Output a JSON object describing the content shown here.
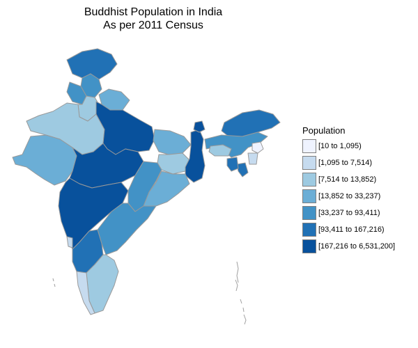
{
  "title": {
    "line1": "Buddhist Population in India",
    "line2": "As per 2011 Census"
  },
  "legend": {
    "title": "Population",
    "items": [
      {
        "label": "[10 to 1,095)",
        "color": "#eff3ff"
      },
      {
        "label": "[1,095 to 7,514)",
        "color": "#c6dbef"
      },
      {
        "label": "[7,514 to 13,852)",
        "color": "#9ecae1"
      },
      {
        "label": "[13,852 to 33,237)",
        "color": "#6baed6"
      },
      {
        "label": "[33,237 to 93,411)",
        "color": "#4292c6"
      },
      {
        "label": "[93,411 to 167,216)",
        "color": "#2171b5"
      },
      {
        "label": "[167,216 to 6,531,200]",
        "color": "#08519c"
      }
    ]
  },
  "colors": {
    "border": "#999999",
    "island_outline": "#a0a0a0"
  },
  "regions": [
    {
      "name": "jammu-kashmir",
      "class": 5
    },
    {
      "name": "himachal-pradesh",
      "class": 4
    },
    {
      "name": "punjab",
      "class": 4
    },
    {
      "name": "uttarakhand",
      "class": 3
    },
    {
      "name": "haryana",
      "class": 2
    },
    {
      "name": "rajasthan",
      "class": 2
    },
    {
      "name": "gujarat",
      "class": 3
    },
    {
      "name": "uttar-pradesh",
      "class": 6
    },
    {
      "name": "madhya-pradesh",
      "class": 6
    },
    {
      "name": "maharashtra",
      "class": 6
    },
    {
      "name": "bihar",
      "class": 3
    },
    {
      "name": "jharkhand",
      "class": 2
    },
    {
      "name": "west-bengal",
      "class": 6
    },
    {
      "name": "chhattisgarh",
      "class": 4
    },
    {
      "name": "odisha",
      "class": 3
    },
    {
      "name": "telangana-andhra",
      "class": 4
    },
    {
      "name": "karnataka",
      "class": 5
    },
    {
      "name": "goa",
      "class": 1
    },
    {
      "name": "tamil-nadu",
      "class": 2
    },
    {
      "name": "kerala",
      "class": 1
    },
    {
      "name": "sikkim",
      "class": 6
    },
    {
      "name": "arunachal-pradesh",
      "class": 5
    },
    {
      "name": "assam",
      "class": 4
    },
    {
      "name": "meghalaya",
      "class": 2
    },
    {
      "name": "nagaland",
      "class": 0
    },
    {
      "name": "manipur",
      "class": 1
    },
    {
      "name": "mizoram",
      "class": 5
    },
    {
      "name": "tripura",
      "class": 5
    }
  ]
}
